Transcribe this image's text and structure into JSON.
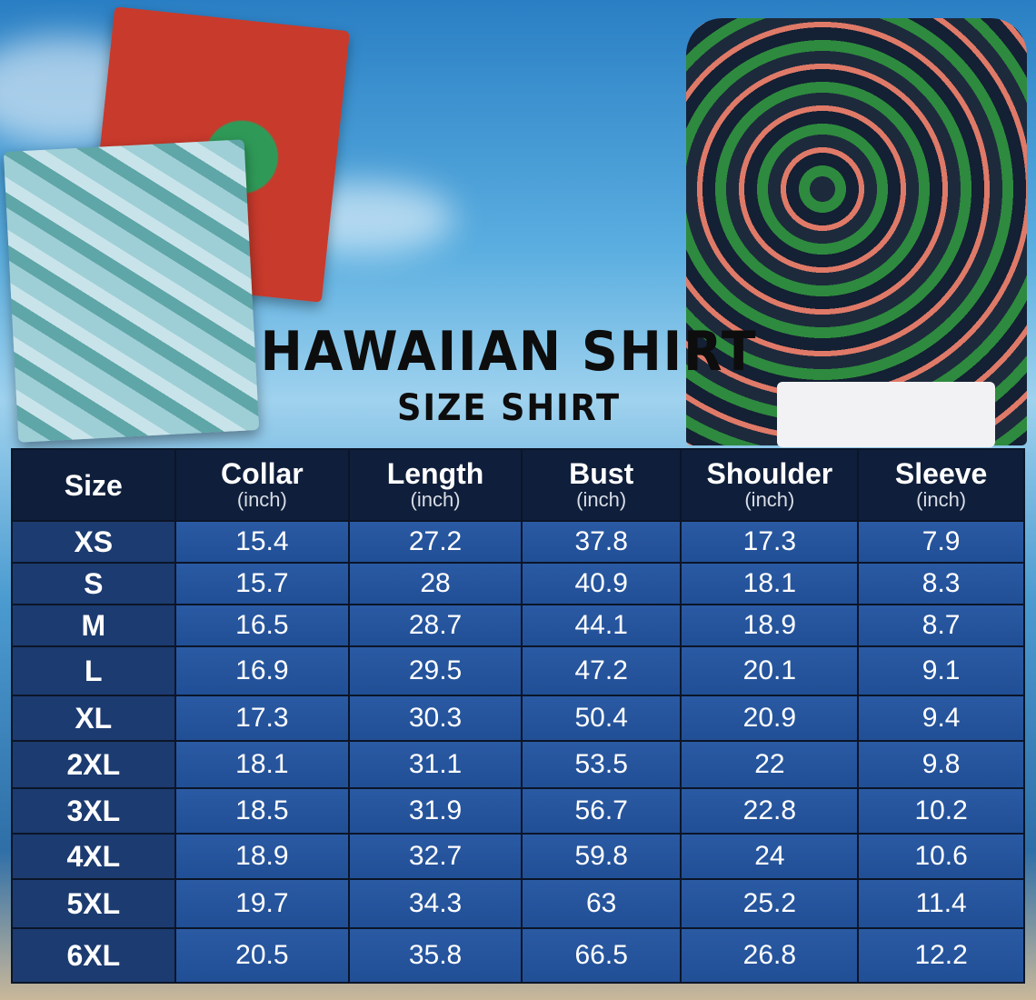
{
  "title": "HAWAIIAN SHIRT",
  "subtitle": "SIZE SHIRT",
  "colors": {
    "header_bg": "#0f1e3a",
    "cell_bg": "#2a5aa3",
    "size_cell_bg": "#1c3b70"
  },
  "table": {
    "headers": [
      {
        "label": "Size",
        "unit": ""
      },
      {
        "label": "Collar",
        "unit": "(inch)"
      },
      {
        "label": "Length",
        "unit": "(inch)"
      },
      {
        "label": "Bust",
        "unit": "(inch)"
      },
      {
        "label": "Shoulder",
        "unit": "(inch)"
      },
      {
        "label": "Sleeve",
        "unit": "(inch)"
      }
    ],
    "rows": [
      [
        "XS",
        "15.4",
        "27.2",
        "37.8",
        "17.3",
        "7.9"
      ],
      [
        "S",
        "15.7",
        "28",
        "40.9",
        "18.1",
        "8.3"
      ],
      [
        "M",
        "16.5",
        "28.7",
        "44.1",
        "18.9",
        "8.7"
      ],
      [
        "L",
        "16.9",
        "29.5",
        "47.2",
        "20.1",
        "9.1"
      ],
      [
        "XL",
        "17.3",
        "30.3",
        "50.4",
        "20.9",
        "9.4"
      ],
      [
        "2XL",
        "18.1",
        "31.1",
        "53.5",
        "22",
        "9.8"
      ],
      [
        "3XL",
        "18.5",
        "31.9",
        "56.7",
        "22.8",
        "10.2"
      ],
      [
        "4XL",
        "18.9",
        "32.7",
        "59.8",
        "24",
        "10.6"
      ],
      [
        "5XL",
        "19.7",
        "34.3",
        "63",
        "25.2",
        "11.4"
      ],
      [
        "6XL",
        "20.5",
        "35.8",
        "66.5",
        "26.8",
        "12.2"
      ]
    ]
  }
}
